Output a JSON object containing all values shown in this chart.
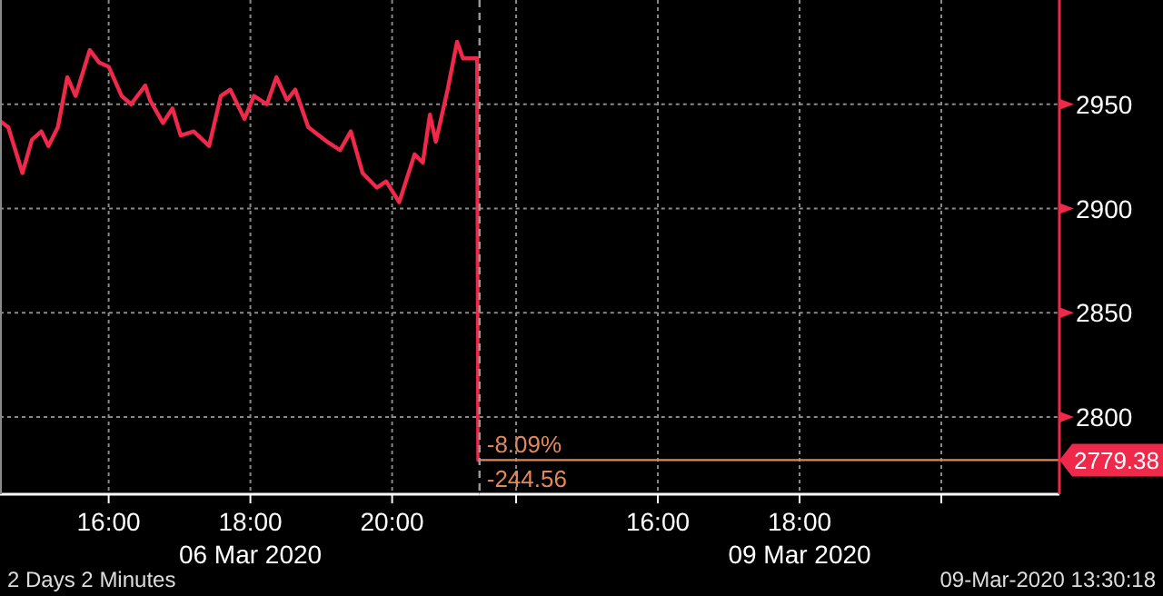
{
  "chart_data": [
    {
      "type": "line",
      "x": [
        "2020-03-06T14:28",
        "2020-03-06T14:35",
        "2020-03-06T14:47",
        "2020-03-06T14:55",
        "2020-03-06T15:03",
        "2020-03-06T15:09",
        "2020-03-06T15:17",
        "2020-03-06T15:25",
        "2020-03-06T15:32",
        "2020-03-06T15:44",
        "2020-03-06T15:52",
        "2020-03-06T16:00",
        "2020-03-06T16:11",
        "2020-03-06T16:19",
        "2020-03-06T16:31",
        "2020-03-06T16:35",
        "2020-03-06T16:46",
        "2020-03-06T16:54",
        "2020-03-06T17:01",
        "2020-03-06T17:12",
        "2020-03-06T17:25",
        "2020-03-06T17:35",
        "2020-03-06T17:43",
        "2020-03-06T17:55",
        "2020-03-06T18:03",
        "2020-03-06T18:14",
        "2020-03-06T18:22",
        "2020-03-06T18:31",
        "2020-03-06T18:38",
        "2020-03-06T18:49",
        "2020-03-06T19:05",
        "2020-03-06T19:16",
        "2020-03-06T19:25",
        "2020-03-06T19:35",
        "2020-03-06T19:47",
        "2020-03-06T19:55",
        "2020-03-06T20:06",
        "2020-03-06T20:19",
        "2020-03-06T20:26",
        "2020-03-06T20:32",
        "2020-03-06T20:37",
        "2020-03-06T20:47",
        "2020-03-06T20:55",
        "2020-03-06T21:00",
        "2020-03-06T21:12",
        "2020-03-06T21:13"
      ],
      "series": [
        {
          "color": "#f0284a",
          "values": [
            2942,
            2939,
            2917,
            2933,
            2937,
            2930,
            2939,
            2963,
            2954,
            2976,
            2970,
            2968,
            2954,
            2950,
            2959,
            2952,
            2941,
            2948,
            2935,
            2937,
            2930,
            2954,
            2957,
            2943,
            2954,
            2950,
            2963,
            2952,
            2957,
            2939,
            2932,
            2928,
            2937,
            2917,
            2910,
            2913,
            2903,
            2926,
            2922,
            2945,
            2932,
            2957,
            2980,
            2972,
            2972,
            2779.38
          ]
        }
      ],
      "xlim": [
        "2020-03-06T14:28",
        "2020-03-06T21:14"
      ],
      "xticks": [
        {
          "value": "2020-03-06T16:00",
          "label": "16:00"
        },
        {
          "value": "2020-03-06T18:00",
          "label": "18:00\n06 Mar 2020"
        },
        {
          "value": "2020-03-06T20:00",
          "label": "20:00"
        }
      ],
      "ylim": [
        2763,
        3000
      ],
      "yticks": [
        2800,
        2850,
        2900,
        2950
      ],
      "tick_labels": "x",
      "grid": true,
      "marker": "none",
      "line_style": "solid"
    },
    {
      "type": "line",
      "xlim": [
        "2020-03-09T13:29",
        "2020-03-09T21:40"
      ],
      "xticks": [
        {
          "value": "2020-03-09T14:00",
          "label": null
        },
        {
          "value": "2020-03-09T16:00",
          "label": "16:00"
        },
        {
          "value": "2020-03-09T18:00",
          "label": "18:00\n09 Mar 2020"
        },
        {
          "value": "2020-03-09T20:00",
          "label": null
        }
      ],
      "ylim": [
        2763,
        3000
      ],
      "yticks": [
        2800,
        2850,
        2900,
        2950
      ],
      "grid": true,
      "ref_lines": [
        {
          "axis": "y",
          "value": 2779.38,
          "label": "2779.38",
          "color": "#e0885a"
        },
        {
          "axis": "x",
          "value": "2020-03-09T13:29",
          "label": null,
          "color": "#9a9a9a",
          "line_style": "dashed"
        }
      ],
      "annotations": [
        {
          "text": "-8.09%",
          "x": "2020-03-09T13:29",
          "y": 2779.38
        },
        {
          "text": "-244.56",
          "x": "2020-03-09T13:29",
          "y": 2779.38
        },
        "2 Days 2 Minutes",
        "09-Mar-2020 13:30:18"
      ]
    }
  ]
}
